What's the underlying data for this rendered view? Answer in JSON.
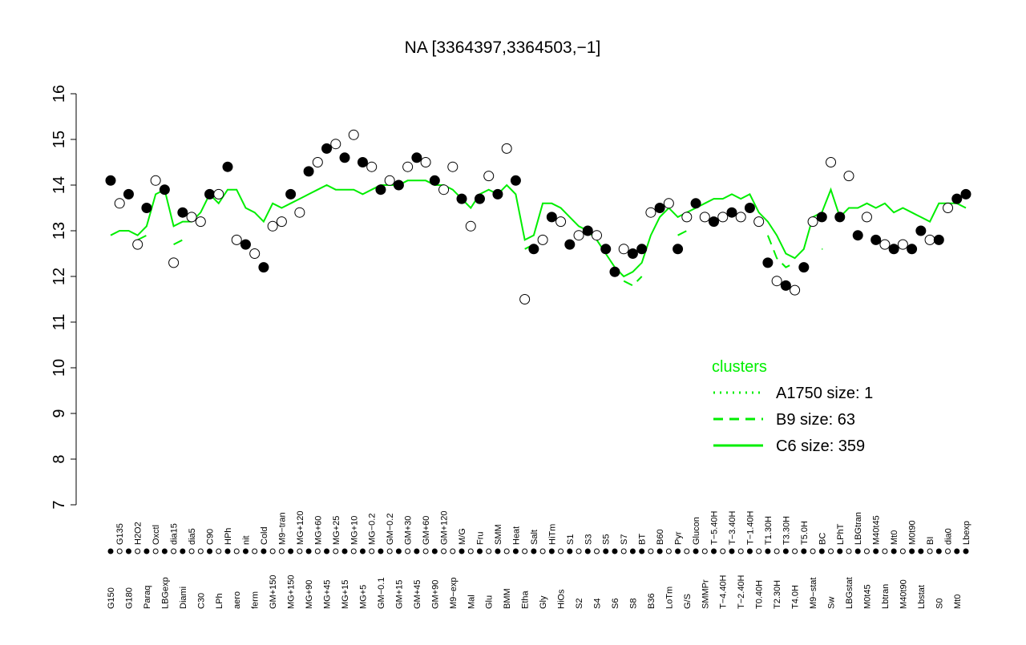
{
  "chart_data": {
    "type": "scatter",
    "title": "NA [3364397,3364503,−1]",
    "categories": [
      "G150",
      "G135",
      "G180",
      "H2O2",
      "Paraq",
      "Oxctl",
      "LBGexp",
      "dia15",
      "Diami",
      "dia5",
      "C30",
      "C90",
      "LPh",
      "HPh",
      "aero",
      "nit",
      "ferm",
      "Cold",
      "GM+150",
      "M9−tran",
      "MG+150",
      "MG+120",
      "MG+90",
      "MG+60",
      "MG+45",
      "MG+25",
      "MG+15",
      "MG+10",
      "MG+5",
      "MG−0.2",
      "GM−0.1",
      "GM−0.2",
      "GM+15",
      "GM+30",
      "GM+45",
      "GM+60",
      "GM+90",
      "GM+120",
      "M9−exp",
      "M/G",
      "Mal",
      "Fru",
      "Glu",
      "SMM",
      "BMM",
      "Heat",
      "Etha",
      "Salt",
      "Gly",
      "HiTm",
      "HiOs",
      "S1",
      "S2",
      "S3",
      "S4",
      "S5",
      "S6",
      "S7",
      "S8",
      "BT",
      "B36",
      "B60",
      "LoTm",
      "Pyr",
      "G/S",
      "Glucon",
      "SMMPr",
      "T−5.40H",
      "T−4.40H",
      "T−3.40H",
      "T−2.40H",
      "T−1.40H",
      "T0.40H",
      "T1.30H",
      "T2.30H",
      "T3.30H",
      "T4.0H",
      "T5.0H",
      "M9−stat",
      "BC",
      "Sw",
      "LPhT",
      "LBGstat",
      "LBGtran",
      "M0t45",
      "M40t45",
      "Lbtran",
      "Mt0",
      "M40t90",
      "M0t90",
      "Lbstat",
      "BI",
      "S0",
      "dia0",
      "Mt0",
      "Lbexp"
    ],
    "values": [
      14.1,
      13.6,
      13.8,
      12.7,
      13.5,
      14.1,
      13.9,
      12.3,
      13.4,
      13.3,
      13.2,
      13.8,
      13.8,
      14.4,
      12.8,
      12.7,
      12.5,
      12.2,
      13.1,
      13.2,
      13.8,
      13.4,
      14.3,
      14.5,
      14.8,
      14.9,
      14.6,
      15.1,
      14.5,
      14.4,
      13.9,
      14.1,
      14.0,
      14.4,
      14.6,
      14.5,
      14.1,
      13.9,
      14.4,
      13.7,
      13.1,
      13.7,
      14.2,
      13.8,
      14.8,
      14.1,
      11.5,
      12.6,
      12.8,
      13.3,
      13.2,
      12.7,
      12.9,
      13.0,
      12.9,
      12.6,
      12.1,
      12.6,
      12.5,
      12.6,
      13.4,
      13.5,
      13.6,
      12.6,
      13.3,
      13.6,
      13.3,
      13.2,
      13.3,
      13.4,
      13.3,
      13.5,
      13.2,
      12.3,
      11.9,
      11.8,
      11.7,
      12.2,
      13.2,
      13.3,
      14.5,
      13.3,
      14.2,
      12.9,
      13.3,
      12.8,
      12.7,
      12.6,
      12.7,
      12.6,
      13.0,
      12.8,
      12.8,
      13.5,
      13.7,
      13.8
    ],
    "filled": [
      true,
      false,
      true,
      false,
      true,
      false,
      true,
      false,
      true,
      false,
      false,
      true,
      false,
      true,
      false,
      true,
      false,
      true,
      false,
      false,
      true,
      false,
      true,
      false,
      true,
      false,
      true,
      false,
      true,
      false,
      true,
      false,
      true,
      false,
      true,
      false,
      true,
      false,
      false,
      true,
      false,
      true,
      false,
      true,
      false,
      true,
      false,
      true,
      false,
      true,
      false,
      true,
      false,
      true,
      false,
      true,
      true,
      false,
      true,
      true,
      false,
      true,
      false,
      true,
      false,
      true,
      false,
      true,
      false,
      true,
      false,
      true,
      false,
      true,
      false,
      true,
      false,
      true,
      false,
      true,
      false,
      true,
      false,
      true,
      false,
      true,
      false,
      true,
      false,
      true,
      true,
      false,
      true,
      false,
      true,
      true
    ],
    "ylim": [
      7,
      16
    ],
    "yticks": [
      7,
      8,
      9,
      10,
      11,
      12,
      13,
      14,
      15,
      16
    ],
    "legend_title": "clusters",
    "legend_position": "right",
    "series": [
      {
        "name": "A1750 size: 1",
        "color": "#00ee00",
        "dash": "dotted",
        "values": [
          null,
          null,
          null,
          null,
          null,
          null,
          null,
          null,
          null,
          null,
          null,
          null,
          null,
          null,
          null,
          null,
          null,
          null,
          null,
          null,
          null,
          null,
          null,
          null,
          null,
          null,
          null,
          null,
          null,
          null,
          null,
          null,
          null,
          null,
          null,
          null,
          null,
          null,
          null,
          null,
          null,
          null,
          null,
          null,
          null,
          null,
          null,
          null,
          null,
          null,
          null,
          null,
          null,
          null,
          null,
          null,
          null,
          null,
          null,
          null,
          null,
          null,
          null,
          null,
          null,
          null,
          null,
          null,
          null,
          null,
          null,
          null,
          null,
          null,
          null,
          null,
          null,
          null,
          null,
          null,
          null,
          null,
          null,
          null,
          null,
          null,
          null,
          null,
          null,
          null,
          null,
          null,
          null,
          null,
          null,
          null
        ]
      },
      {
        "name": "B9 size: 63",
        "color": "#00ee00",
        "dash": "dashed",
        "values": [
          null,
          null,
          null,
          12.8,
          12.9,
          null,
          null,
          12.7,
          12.8,
          null,
          null,
          null,
          null,
          null,
          null,
          null,
          null,
          null,
          null,
          null,
          null,
          null,
          null,
          null,
          null,
          null,
          null,
          null,
          null,
          null,
          null,
          null,
          null,
          null,
          null,
          null,
          null,
          null,
          null,
          null,
          null,
          null,
          null,
          null,
          null,
          null,
          12.6,
          12.7,
          null,
          null,
          null,
          null,
          null,
          null,
          null,
          null,
          null,
          11.9,
          11.8,
          12.0,
          null,
          null,
          null,
          12.9,
          13.0,
          null,
          null,
          null,
          null,
          null,
          null,
          null,
          null,
          12.9,
          12.4,
          12.2,
          12.3,
          null,
          null,
          12.6,
          null,
          null,
          null,
          null,
          null,
          null,
          null,
          null,
          null,
          null,
          null,
          null,
          null,
          null,
          null,
          null
        ]
      },
      {
        "name": "C6 size: 359",
        "color": "#00ee00",
        "dash": "solid",
        "values": [
          12.9,
          13.0,
          13.0,
          12.9,
          13.1,
          13.8,
          13.9,
          13.1,
          13.2,
          13.2,
          13.4,
          13.8,
          13.6,
          13.9,
          13.9,
          13.5,
          13.4,
          13.2,
          13.6,
          13.5,
          13.6,
          13.7,
          13.8,
          13.9,
          14.0,
          13.9,
          13.9,
          13.9,
          13.8,
          13.9,
          14.0,
          14.0,
          14.0,
          14.1,
          14.1,
          14.1,
          14.0,
          14.0,
          13.9,
          13.7,
          13.5,
          13.8,
          13.9,
          13.8,
          14.0,
          13.8,
          12.8,
          12.9,
          13.6,
          13.6,
          13.5,
          13.3,
          13.1,
          13.0,
          12.8,
          12.5,
          12.2,
          12.0,
          12.1,
          12.3,
          12.9,
          13.3,
          13.5,
          13.3,
          13.4,
          13.5,
          13.6,
          13.7,
          13.7,
          13.8,
          13.7,
          13.8,
          13.4,
          13.2,
          12.9,
          12.5,
          12.4,
          12.6,
          13.3,
          13.4,
          13.9,
          13.3,
          13.5,
          13.5,
          13.6,
          13.5,
          13.6,
          13.4,
          13.5,
          13.4,
          13.3,
          13.2,
          13.6,
          13.6,
          13.6,
          13.5
        ]
      }
    ]
  }
}
